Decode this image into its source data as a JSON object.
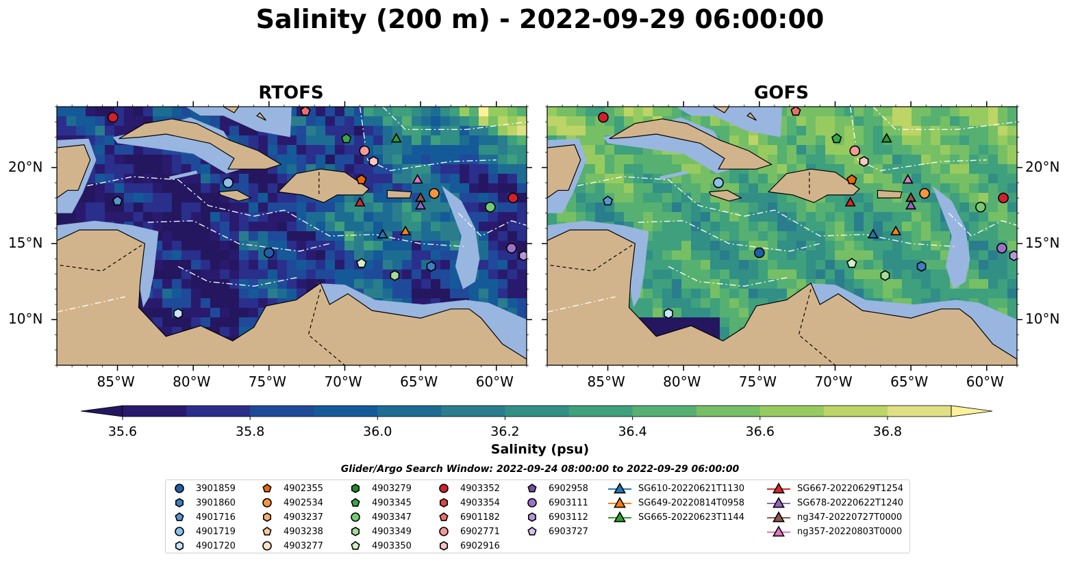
{
  "title": "Salinity (200 m) - 2022-09-29 06:00:00",
  "panels": [
    {
      "title": "RTOFS",
      "model": "rtofs"
    },
    {
      "title": "GOFS",
      "model": "gofs"
    }
  ],
  "lon_ticks": [
    "85°W",
    "80°W",
    "75°W",
    "70°W",
    "65°W",
    "60°W"
  ],
  "lat_ticks": [
    "20°N",
    "15°N",
    "10°N"
  ],
  "colorbar": {
    "label": "Salinity (psu)",
    "ticks": [
      "35.6",
      "35.8",
      "36.0",
      "36.2",
      "36.4",
      "36.6",
      "36.8"
    ],
    "min": 35.6,
    "max": 36.9,
    "step": 0.1,
    "colors": [
      "#2a1a6e",
      "#2a2f8c",
      "#1f4a9a",
      "#155a98",
      "#1d6d93",
      "#2a7d8c",
      "#318f86",
      "#3ea07d",
      "#56b071",
      "#76bf65",
      "#98cb5f",
      "#bcd566",
      "#dfe084"
    ],
    "extend_low": "#241760",
    "extend_high": "#fdf19c"
  },
  "colors": {
    "land": "#d2b48c",
    "shelf": "#98b6e0",
    "deep_background": "#1d2f8f"
  },
  "search_window": "Glider/Argo Search Window: 2022-09-24 08:00:00 to 2022-09-29 06:00:00",
  "legend": [
    {
      "label": "3901859",
      "marker": "circle",
      "color": "#1f5fa8"
    },
    {
      "label": "3901860",
      "marker": "hexagon",
      "color": "#3c7fc2"
    },
    {
      "label": "4901716",
      "marker": "pentagon",
      "color": "#5a95d2"
    },
    {
      "label": "4901719",
      "marker": "circle",
      "color": "#8cc0e8"
    },
    {
      "label": "4901720",
      "marker": "hexagon",
      "color": "#c8e4f6"
    },
    {
      "label": "4902355",
      "marker": "pentagon",
      "color": "#e8680c"
    },
    {
      "label": "4902534",
      "marker": "circle",
      "color": "#f69441"
    },
    {
      "label": "4903237",
      "marker": "hexagon",
      "color": "#f8ad72"
    },
    {
      "label": "4903238",
      "marker": "pentagon",
      "color": "#fbc99c"
    },
    {
      "label": "4903277",
      "marker": "circle",
      "color": "#fde3c6"
    },
    {
      "label": "4903279",
      "marker": "hexagon",
      "color": "#1f8a2e"
    },
    {
      "label": "4903345",
      "marker": "pentagon",
      "color": "#3aa64a"
    },
    {
      "label": "4903347",
      "marker": "circle",
      "color": "#72cc6f"
    },
    {
      "label": "4903349",
      "marker": "hexagon",
      "color": "#a4dc98"
    },
    {
      "label": "4903350",
      "marker": "pentagon",
      "color": "#d2f0c8"
    },
    {
      "label": "4903352",
      "marker": "circle",
      "color": "#d3202a"
    },
    {
      "label": "4903354",
      "marker": "hexagon",
      "color": "#e04548"
    },
    {
      "label": "6901182",
      "marker": "pentagon",
      "color": "#ec6f6c"
    },
    {
      "label": "6902771",
      "marker": "circle",
      "color": "#f49a98"
    },
    {
      "label": "6902916",
      "marker": "hexagon",
      "color": "#f9c6c4"
    },
    {
      "label": "6902958",
      "marker": "pentagon",
      "color": "#7a4ea0"
    },
    {
      "label": "6903111",
      "marker": "circle",
      "color": "#9b72c4"
    },
    {
      "label": "6903112",
      "marker": "hexagon",
      "color": "#b896d6"
    },
    {
      "label": "6903727",
      "marker": "pentagon",
      "color": "#d6c2ea"
    },
    {
      "label": "SG610-20220621T1130",
      "marker": "triangle",
      "color": "#1f77b4"
    },
    {
      "label": "SG649-20220814T0958",
      "marker": "triangle",
      "color": "#ff7f0e"
    },
    {
      "label": "SG665-20220623T1144",
      "marker": "triangle",
      "color": "#2ca02c"
    },
    {
      "label": "SG667-20220629T1254",
      "marker": "triangle",
      "color": "#d62728"
    },
    {
      "label": "SG678-20220622T1240",
      "marker": "triangle",
      "color": "#9467bd"
    },
    {
      "label": "ng347-20220727T0000",
      "marker": "triangle",
      "color": "#8c564b"
    },
    {
      "label": "ng357-20220803T0000",
      "marker": "triangle",
      "color": "#e377c2"
    }
  ],
  "observations": [
    {
      "id": "4903352",
      "lon": -85.3,
      "lat": 23.3
    },
    {
      "id": "6901182",
      "lon": -72.6,
      "lat": 23.7
    },
    {
      "id": "4903345",
      "lon": -69.9,
      "lat": 21.9
    },
    {
      "id": "SG665-20220623T1144",
      "lon": -66.6,
      "lat": 21.9
    },
    {
      "id": "6902771",
      "lon": -68.7,
      "lat": 21.1
    },
    {
      "id": "6902916",
      "lon": -68.1,
      "lat": 20.4
    },
    {
      "id": "4901719",
      "lon": -77.7,
      "lat": 19.0
    },
    {
      "id": "4902355",
      "lon": -68.9,
      "lat": 19.2
    },
    {
      "id": "ng357-20220803T0000",
      "lon": -65.2,
      "lat": 19.2
    },
    {
      "id": "4902534",
      "lon": -64.1,
      "lat": 18.3
    },
    {
      "id": "ng347-20220727T0000",
      "lon": -65.0,
      "lat": 18.0
    },
    {
      "id": "SG678-20220622T1240",
      "lon": -65.0,
      "lat": 17.5
    },
    {
      "id": "SG667-20220629T1254",
      "lon": -69.0,
      "lat": 17.7
    },
    {
      "id": "4903352",
      "lon": -58.9,
      "lat": 18.0
    },
    {
      "id": "4903347",
      "lon": -60.4,
      "lat": 17.4
    },
    {
      "id": "4901716",
      "lon": -85.0,
      "lat": 17.8
    },
    {
      "id": "SG649-20220814T0958",
      "lon": -66.0,
      "lat": 15.8
    },
    {
      "id": "SG610-20220621T1130",
      "lon": -67.5,
      "lat": 15.6
    },
    {
      "id": "6903111",
      "lon": -59.0,
      "lat": 14.7
    },
    {
      "id": "3901859",
      "lon": -75.0,
      "lat": 14.4
    },
    {
      "id": "6903112",
      "lon": -58.2,
      "lat": 14.2
    },
    {
      "id": "4903350",
      "lon": -68.9,
      "lat": 13.7
    },
    {
      "id": "3901860",
      "lon": -64.3,
      "lat": 13.5
    },
    {
      "id": "4903349",
      "lon": -66.7,
      "lat": 12.9
    },
    {
      "id": "4901720",
      "lon": -81.0,
      "lat": 10.4
    }
  ]
}
